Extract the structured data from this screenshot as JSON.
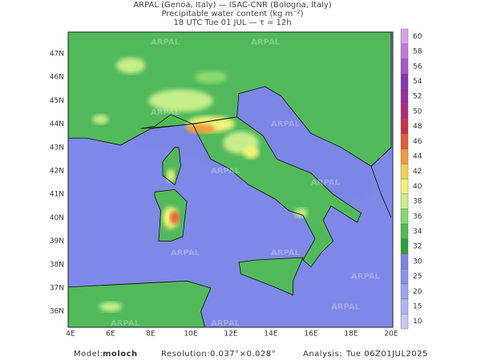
{
  "header": {
    "lines": [
      "ARPAL (Genoa, Italy)  —  ISAC-CNR (Bologna, Italy)",
      "Precipitable water content (kg m⁻²)",
      "18 UTC Tue 01 JUL  —  τ = 12h"
    ]
  },
  "map": {
    "lat_labels": [
      "47N",
      "46N",
      "45N",
      "44N",
      "43N",
      "42N",
      "41N",
      "40N",
      "39N",
      "38N",
      "37N",
      "36N"
    ],
    "lon_labels": [
      "4E",
      "6E",
      "8E",
      "10E",
      "12E",
      "14E",
      "16E",
      "18E",
      "20E"
    ],
    "watermark": "ARPAL"
  },
  "colorbar": {
    "labels": [
      "10",
      "15",
      "20",
      "25",
      "30",
      "32",
      "34",
      "36",
      "38",
      "40",
      "42",
      "44",
      "46",
      "48",
      "50",
      "52",
      "54",
      "56",
      "58",
      "60"
    ],
    "colors": [
      "#c8c8ee",
      "#b0b4f0",
      "#9ca4f0",
      "#8892ea",
      "#7a84e4",
      "#2e9e3e",
      "#4cbf4c",
      "#86dc6c",
      "#c6ee8a",
      "#f2f27a",
      "#f2d058",
      "#ee9a3e",
      "#e45a36",
      "#c8324a",
      "#b02a78",
      "#9a2aa0",
      "#8a34b8",
      "#a458c8",
      "#c07ad8",
      "#d8a2e8"
    ]
  },
  "footer": {
    "model_label": "Model:",
    "model": "moloch",
    "resolution_label": "Resolution:",
    "resolution": "0.037°×0.028°",
    "analysis_label": "Analysis:",
    "analysis": "Tue 06Z01JUL2025"
  }
}
